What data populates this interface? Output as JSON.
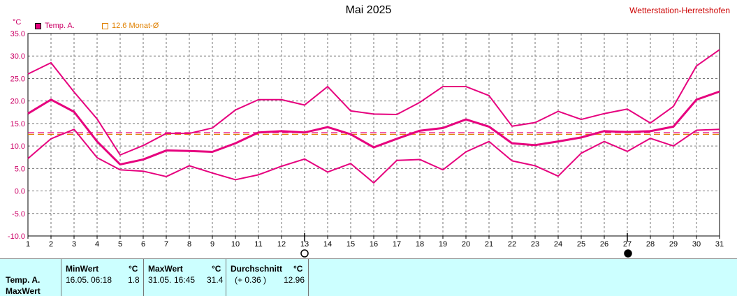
{
  "title": "Mai 2025",
  "station": "Wetterstation-Herretshofen",
  "unit_label": "°C",
  "legend": {
    "series_label": "Temp. A.",
    "series_color": "#e6007e",
    "avg_label": "12.6 Monat-Ø",
    "avg_color": "#e08000"
  },
  "chart_data": {
    "type": "line",
    "title": "Mai 2025",
    "x": [
      1,
      2,
      3,
      4,
      5,
      6,
      7,
      8,
      9,
      10,
      11,
      12,
      13,
      14,
      15,
      16,
      17,
      18,
      19,
      20,
      21,
      22,
      23,
      24,
      25,
      26,
      27,
      28,
      29,
      30,
      31
    ],
    "xlim": [
      1,
      31
    ],
    "ylim": [
      -10,
      35
    ],
    "yticks": [
      "35.0",
      "30.0",
      "25.0",
      "20.0",
      "15.0",
      "10.0",
      "5.0",
      "0.0",
      "-5.0",
      "-10.0"
    ],
    "grid": true,
    "series": [
      {
        "name": "Temp. A.",
        "color": "#e6007e",
        "values": [
          17.2,
          20.3,
          17.6,
          11.0,
          5.9,
          7.0,
          9.0,
          8.9,
          8.7,
          10.6,
          13.0,
          13.3,
          13.0,
          14.2,
          12.6,
          9.7,
          11.6,
          13.4,
          14.0,
          15.9,
          14.3,
          10.6,
          10.2,
          11.0,
          11.9,
          13.3,
          13.1,
          13.3,
          14.3,
          20.3,
          22.1
        ]
      },
      {
        "color": "#e6007e",
        "values": [
          26.0,
          28.5,
          22.0,
          16.0,
          8.0,
          10.1,
          12.8,
          12.8,
          14.0,
          18.0,
          20.3,
          20.3,
          19.1,
          23.2,
          17.8,
          17.1,
          17.0,
          19.7,
          23.2,
          23.2,
          21.2,
          14.4,
          15.2,
          17.7,
          15.9,
          17.2,
          18.2,
          15.1,
          18.8,
          27.8,
          31.4
        ]
      },
      {
        "color": "#e6007e",
        "values": [
          7.2,
          11.6,
          13.7,
          7.4,
          4.7,
          4.4,
          3.2,
          5.6,
          4.0,
          2.5,
          3.6,
          5.5,
          7.1,
          4.2,
          6.1,
          1.8,
          6.8,
          7.0,
          4.7,
          8.7,
          11.0,
          6.7,
          5.6,
          3.3,
          8.4,
          11.0,
          8.8,
          11.7,
          10.0,
          13.5,
          13.7
        ]
      }
    ],
    "reference_lines": [
      {
        "value": 12.6,
        "color": "#e08000",
        "style": "dashed"
      },
      {
        "value": 12.96,
        "color": "#e6007e",
        "style": "dashed"
      }
    ],
    "markers": [
      {
        "x": 13,
        "symbol": "new-moon-open"
      },
      {
        "x": 27,
        "symbol": "moon-filled"
      }
    ]
  },
  "stats": {
    "row_label_1": "Temp. A.",
    "row_label_2": "MaxWert",
    "min_header": "MinWert",
    "min_unit": "°C",
    "min_date": "16.05.",
    "min_time": "06:18",
    "min_value": "1.8",
    "max_header": "MaxWert",
    "max_unit": "°C",
    "max_date": "31.05.",
    "max_time": "16:45",
    "max_value": "31.4",
    "avg_header": "Durchschnitt",
    "avg_unit": "°C",
    "avg_diff": "(+ 0.36 )",
    "avg_value": "12.96"
  }
}
